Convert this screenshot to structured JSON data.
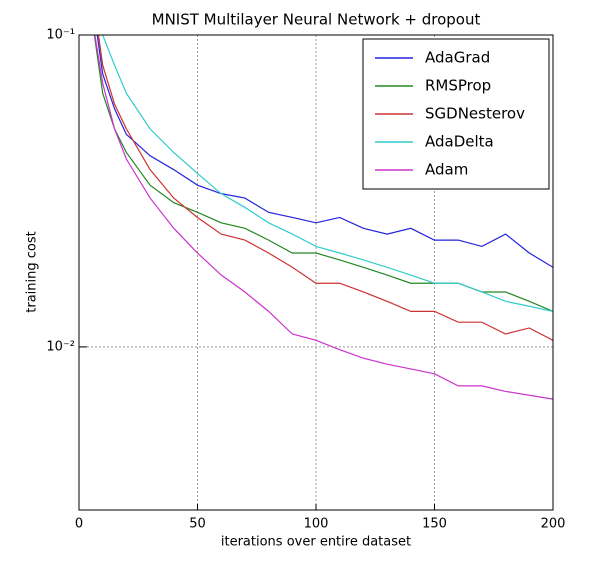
{
  "chart_data": {
    "type": "line",
    "title": "MNIST Multilayer Neural Network + dropout",
    "xlabel": "iterations over entire dataset",
    "ylabel": "training cost",
    "x": [
      5,
      10,
      15,
      20,
      30,
      40,
      50,
      60,
      70,
      80,
      90,
      100,
      110,
      120,
      130,
      140,
      150,
      160,
      170,
      180,
      190,
      200
    ],
    "series": [
      {
        "name": "AdaGrad",
        "color": "#2222dd",
        "values": [
          0.14,
          0.075,
          0.058,
          0.048,
          0.041,
          0.037,
          0.033,
          0.031,
          0.03,
          0.027,
          0.026,
          0.025,
          0.026,
          0.024,
          0.023,
          0.024,
          0.022,
          0.022,
          0.021,
          0.023,
          0.02,
          0.018
        ]
      },
      {
        "name": "RMSProp",
        "color": "#228822",
        "values": [
          0.12,
          0.065,
          0.05,
          0.042,
          0.033,
          0.029,
          0.027,
          0.025,
          0.024,
          0.022,
          0.02,
          0.02,
          0.019,
          0.018,
          0.017,
          0.016,
          0.016,
          0.016,
          0.015,
          0.015,
          0.014,
          0.013
        ]
      },
      {
        "name": "SGDNesterov",
        "color": "#cc3333",
        "values": [
          0.15,
          0.08,
          0.06,
          0.05,
          0.037,
          0.03,
          0.026,
          0.023,
          0.022,
          0.02,
          0.018,
          0.016,
          0.016,
          0.015,
          0.014,
          0.013,
          0.013,
          0.012,
          0.012,
          0.011,
          0.0115,
          0.0105
        ]
      },
      {
        "name": "AdaDelta",
        "color": "#33cccc",
        "values": [
          0.2,
          0.1,
          0.08,
          0.065,
          0.05,
          0.042,
          0.036,
          0.031,
          0.028,
          0.025,
          0.023,
          0.021,
          0.02,
          0.019,
          0.018,
          0.017,
          0.016,
          0.016,
          0.015,
          0.014,
          0.0135,
          0.013
        ]
      },
      {
        "name": "Adam",
        "color": "#cc33cc",
        "values": [
          0.12,
          0.07,
          0.05,
          0.04,
          0.03,
          0.024,
          0.02,
          0.017,
          0.015,
          0.013,
          0.011,
          0.0105,
          0.0098,
          0.0092,
          0.0088,
          0.0085,
          0.0082,
          0.0075,
          0.0075,
          0.0072,
          0.007,
          0.0068
        ]
      }
    ],
    "xlim": [
      0,
      200
    ],
    "xticks": [
      0,
      50,
      100,
      150,
      200
    ],
    "ylim": [
      0.003,
      0.1
    ],
    "yticks": [
      {
        "value": 0.01,
        "label": "10⁻²"
      },
      {
        "value": 0.1,
        "label": "10⁻¹"
      }
    ],
    "yscale": "log",
    "grid": true,
    "legend": "upper-right"
  }
}
